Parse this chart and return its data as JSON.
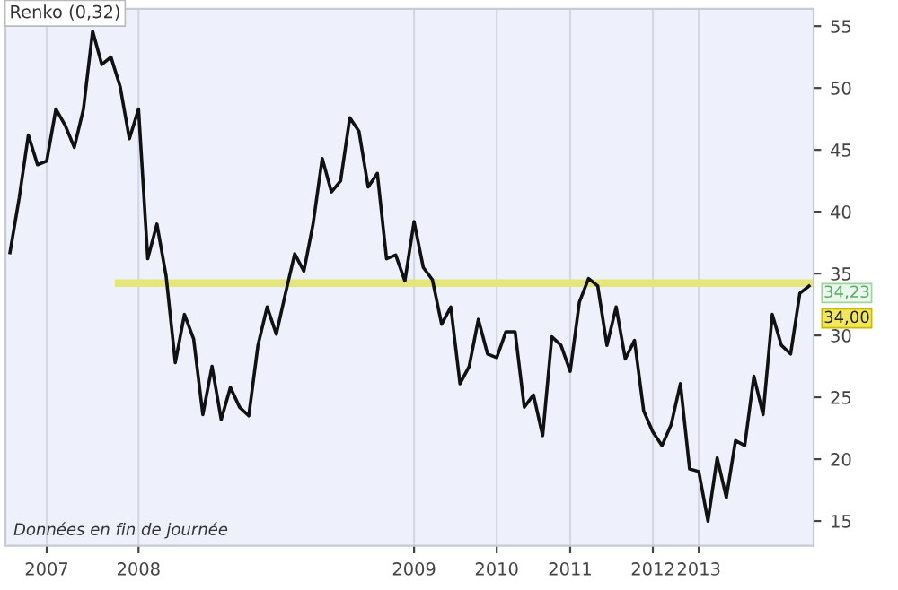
{
  "chart_data": {
    "type": "line",
    "title": "Renko (0,32)",
    "categories": [
      null,
      null,
      null,
      null,
      "2007",
      null,
      null,
      null,
      null,
      null,
      null,
      null,
      null,
      null,
      "2008",
      null,
      null,
      null,
      null,
      null,
      null,
      null,
      null,
      null,
      null,
      null,
      null,
      null,
      null,
      null,
      null,
      null,
      null,
      null,
      null,
      null,
      null,
      null,
      null,
      null,
      null,
      null,
      null,
      null,
      "2009",
      null,
      null,
      null,
      null,
      null,
      null,
      null,
      null,
      "2010",
      null,
      null,
      null,
      null,
      null,
      null,
      null,
      "2011",
      null,
      null,
      null,
      null,
      null,
      null,
      null,
      null,
      "2012",
      null,
      null,
      null,
      null,
      "2013",
      null,
      null,
      null,
      null,
      null,
      null,
      null,
      null,
      null,
      null,
      null,
      null
    ],
    "series": [
      {
        "color": "#111111",
        "values": [
          36.7,
          41.1,
          46.2,
          43.8,
          44.1,
          48.3,
          47.0,
          45.2,
          48.3,
          54.6,
          51.9,
          52.5,
          50.1,
          45.9,
          48.3,
          36.2,
          39.0,
          34.8,
          27.8,
          31.7,
          29.7,
          23.6,
          27.5,
          23.2,
          25.8,
          24.2,
          23.5,
          29.2,
          32.3,
          30.1,
          33.4,
          36.6,
          35.2,
          39.0,
          44.3,
          41.6,
          42.5,
          47.6,
          46.5,
          42.0,
          43.1,
          36.2,
          36.5,
          34.4,
          39.2,
          35.5,
          34.5,
          30.9,
          32.3,
          26.1,
          27.5,
          31.3,
          28.5,
          28.2,
          30.3,
          30.3,
          24.2,
          25.2,
          21.9,
          29.9,
          29.2,
          27.1,
          32.7,
          34.6,
          34.0,
          29.2,
          32.3,
          28.1,
          29.6,
          23.9,
          22.2,
          21.1,
          22.8,
          26.1,
          19.2,
          19.0,
          15.0,
          20.1,
          16.9,
          21.5,
          21.1,
          26.7,
          23.6,
          31.7,
          29.2,
          28.5,
          33.4,
          34.0
        ]
      }
    ],
    "ylim": [
      13,
      56.4
    ],
    "yticks": [
      15,
      20,
      25,
      30,
      35,
      40,
      45,
      50,
      55
    ],
    "grid": "x",
    "ref_lines": [
      {
        "axis": "y",
        "value": 34.23,
        "label": "34,23",
        "color": "#e4e67a"
      }
    ],
    "annotations": [
      "34,00",
      "Données en fin de journée"
    ]
  }
}
